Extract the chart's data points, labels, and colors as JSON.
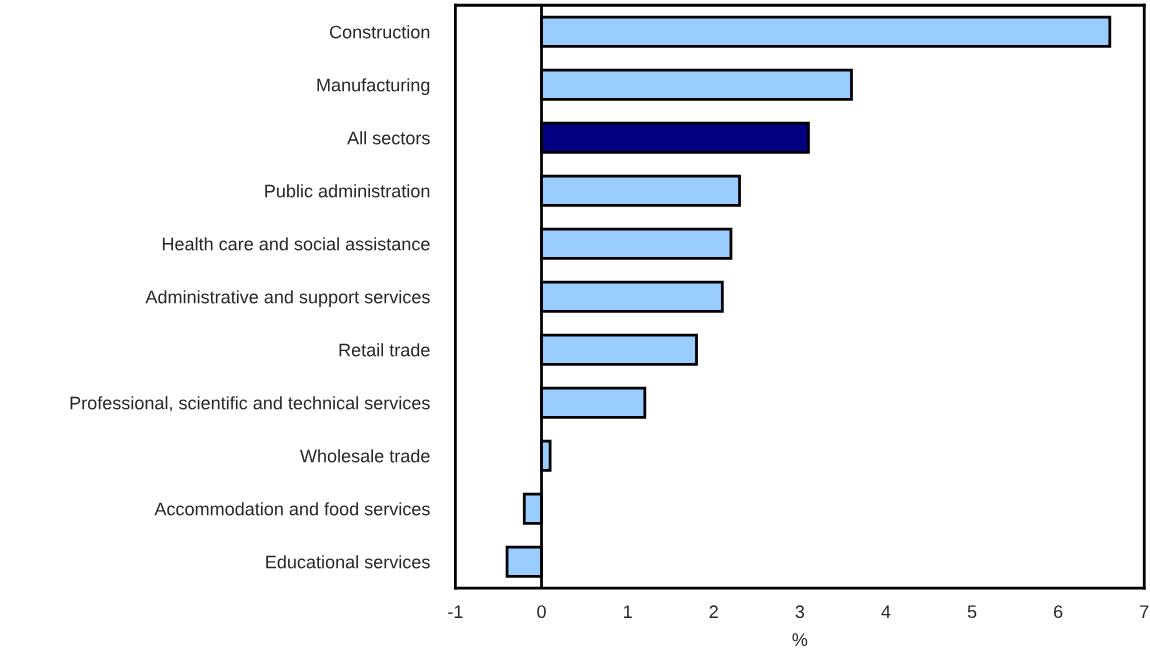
{
  "chart_data": {
    "type": "bar",
    "orientation": "horizontal",
    "xlabel": "%",
    "categories": [
      "Construction",
      "Manufacturing",
      "All sectors",
      "Public administration",
      "Health care and social assistance",
      "Administrative and support services",
      "Retail trade",
      "Professional, scientific and technical services",
      "Wholesale trade",
      "Accommodation and food services",
      "Educational services"
    ],
    "values": [
      6.6,
      3.6,
      3.1,
      2.3,
      2.2,
      2.1,
      1.8,
      1.2,
      0.1,
      -0.2,
      -0.4
    ],
    "colors": [
      "#99ccff",
      "#99ccff",
      "#000080",
      "#99ccff",
      "#99ccff",
      "#99ccff",
      "#99ccff",
      "#99ccff",
      "#99ccff",
      "#99ccff",
      "#99ccff"
    ],
    "xlim": [
      -1,
      7
    ],
    "xticks": [
      -1,
      0,
      1,
      2,
      3,
      4,
      5,
      6,
      7
    ],
    "ref_lines": [
      {
        "axis": "x",
        "value": 0,
        "color": "#000000"
      }
    ],
    "grid": false,
    "legend": false
  }
}
